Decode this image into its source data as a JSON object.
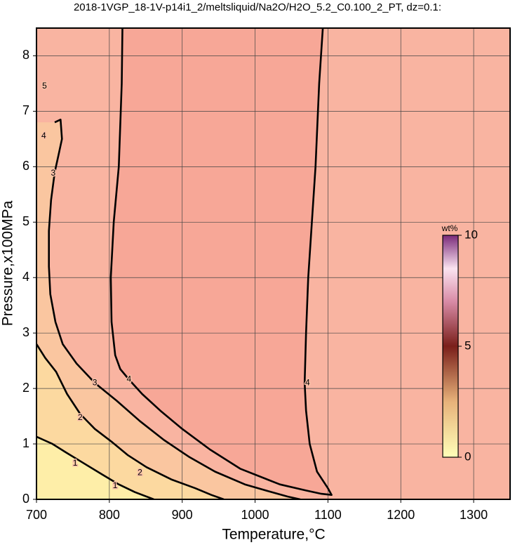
{
  "chart_data": {
    "type": "contour",
    "title": "2018-1VGP_18-1V-p14i1_2/meltsliquid/Na2O/H2O_5.2_C0.100_2_PT, dz=0.1:",
    "xlabel": "Temperature,°C",
    "ylabel": "Pressure,x100MPa",
    "xlim": [
      700,
      1350
    ],
    "ylim": [
      0,
      8.5
    ],
    "xticks": [
      700,
      800,
      900,
      1000,
      1100,
      1200,
      1300
    ],
    "yticks": [
      0,
      1,
      2,
      3,
      4,
      5,
      6,
      7,
      8
    ],
    "grid": true,
    "background": "#f9b4a1",
    "contours": [
      {
        "color": "#000000",
        "fill": "#f7a797",
        "x": [
          818,
          817,
          813,
          806,
          802,
          803,
          808,
          815,
          827,
          845,
          870,
          900,
          938,
          980,
          1034,
          1070,
          1091,
          1105,
          1100,
          1085,
          1075,
          1070,
          1068,
          1070,
          1073,
          1078,
          1083,
          1088,
          1093
        ],
        "y": [
          8.5,
          7.5,
          6,
          5,
          4,
          3.2,
          2.6,
          2.35,
          2.16,
          1.9,
          1.6,
          1.27,
          0.9,
          0.55,
          0.27,
          0.16,
          0.1,
          0.08,
          0.2,
          0.5,
          1.0,
          1.6,
          2.1,
          3,
          4,
          5,
          6,
          7.5,
          8.5
        ]
      },
      {
        "color": "#000000",
        "fill": "#fac6a0",
        "x": [
          725,
          733,
          735,
          730,
          725,
          720,
          717,
          717,
          719,
          726,
          736,
          755,
          780,
          810,
          842,
          875,
          909,
          945,
          986,
          1020,
          1045,
          1062
        ],
        "y": [
          6.8,
          6.85,
          6.5,
          6.2,
          5.9,
          5.4,
          4.84,
          4.2,
          3.7,
          3.2,
          2.8,
          2.45,
          2.1,
          1.78,
          1.41,
          1.07,
          0.77,
          0.5,
          0.27,
          0.14,
          0.05,
          0
        ]
      },
      {
        "color": "#000000",
        "fill": "#fcd9a0",
        "x": [
          700,
          712,
          727,
          742,
          760,
          780,
          804,
          825,
          851,
          885,
          918,
          940,
          957
        ],
        "y": [
          2.8,
          2.55,
          2.3,
          1.9,
          1.54,
          1.27,
          1.03,
          0.8,
          0.58,
          0.36,
          0.2,
          0.08,
          0
        ]
      },
      {
        "color": "#000000",
        "fill": "#feeea8",
        "x": [
          700,
          710,
          722,
          740,
          765,
          790,
          813,
          835,
          861
        ],
        "y": [
          1.13,
          1.07,
          1.0,
          0.85,
          0.65,
          0.45,
          0.27,
          0.13,
          0
        ]
      }
    ],
    "contour_labels": [
      {
        "label": 1,
        "x": 753,
        "y": 0.65
      },
      {
        "label": 1,
        "x": 808,
        "y": 0.24
      },
      {
        "label": 2,
        "x": 760,
        "y": 1.47
      },
      {
        "label": 2,
        "x": 842,
        "y": 0.48
      },
      {
        "label": 3,
        "x": 780,
        "y": 2.1
      },
      {
        "label": 3,
        "x": 723,
        "y": 5.88
      },
      {
        "label": 4,
        "x": 827,
        "y": 2.16
      },
      {
        "label": 4,
        "x": 1072,
        "y": 2.1
      },
      {
        "label": 4,
        "x": 710,
        "y": 6.55
      },
      {
        "label": 5,
        "x": 711,
        "y": 7.45
      }
    ],
    "colorbar": {
      "label": "wt%",
      "lim": [
        0,
        10
      ],
      "ticks": [
        0,
        5,
        10
      ]
    }
  }
}
